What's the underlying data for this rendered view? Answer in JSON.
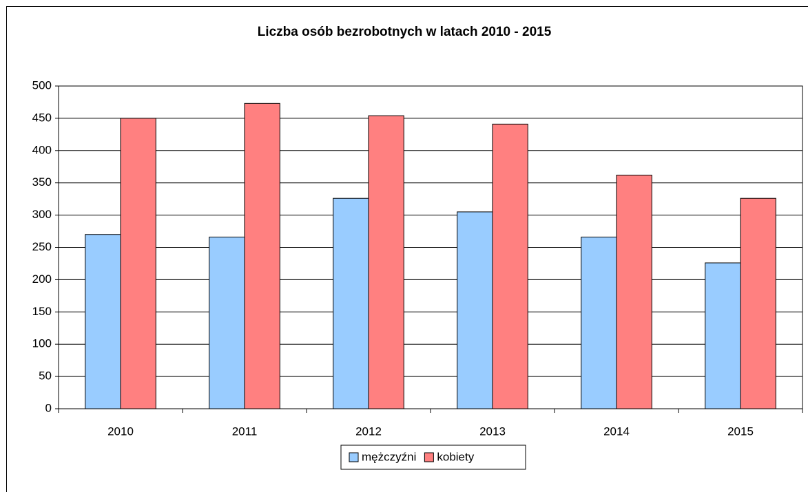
{
  "chart_data": {
    "type": "bar",
    "title": "Liczba osób bezrobotnych w latach 2010 - 2015",
    "categories": [
      "2010",
      "2011",
      "2012",
      "2013",
      "2014",
      "2015"
    ],
    "series": [
      {
        "name": "mężczyźni",
        "color": "#99ccff",
        "values": [
          270,
          266,
          326,
          305,
          266,
          226
        ]
      },
      {
        "name": "kobiety",
        "color": "#ff8080",
        "values": [
          450,
          473,
          454,
          441,
          362,
          326
        ]
      }
    ],
    "ylim": [
      0,
      500
    ],
    "yticks": [
      0,
      50,
      100,
      150,
      200,
      250,
      300,
      350,
      400,
      450,
      500
    ],
    "grid": true,
    "legend": "bottom"
  }
}
